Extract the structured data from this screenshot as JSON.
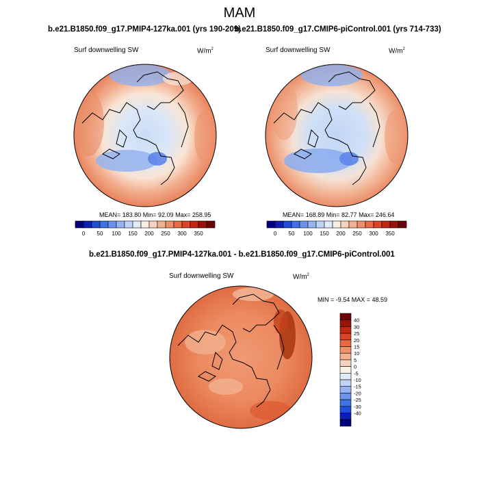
{
  "title": "MAM",
  "panels": [
    {
      "title": "b.e21.B1850.f09_g17.PMIP4-127ka.001 (yrs 190-209)",
      "variable": "Surf downwelling SW",
      "units": "W/m",
      "units_sup": "2",
      "stats": "MEAN= 183.80  Min= 92.09  Max= 258.95"
    },
    {
      "title": "b.e21.B1850.f09_g17.CMIP6-piControl.001 (yrs 714-733)",
      "variable": "Surf downwelling SW",
      "units": "W/m",
      "units_sup": "2",
      "stats": "MEAN= 168.89  Min= 82.77  Max= 246.64"
    }
  ],
  "diff_panel": {
    "title": "b.e21.B1850.f09_g17.PMIP4-127ka.001 - b.e21.B1850.f09_g17.CMIP6-piControl.001",
    "variable": "Surf downwelling SW",
    "units": "W/m",
    "units_sup": "2",
    "stats": "MIN =  -9.54 MAX =  48.59"
  },
  "colorbar_abs": {
    "colors": [
      "#00007f",
      "#0b1fb3",
      "#1f4fd6",
      "#3f72e6",
      "#6b93ee",
      "#95b3f2",
      "#bed3f6",
      "#e0ebfa",
      "#fbeee2",
      "#f7d3bd",
      "#f3b393",
      "#ee9069",
      "#e76a45",
      "#dc4427",
      "#c22714",
      "#9a1208",
      "#6b0404"
    ],
    "labels": [
      "0",
      "50",
      "100",
      "150",
      "200",
      "250",
      "300",
      "350"
    ]
  },
  "colorbar_diff": {
    "colors": [
      "#6b0404",
      "#9a1208",
      "#c22714",
      "#dc4427",
      "#e76a45",
      "#ee9069",
      "#f3b393",
      "#f7d3bd",
      "#fbeee2",
      "#e0ebfa",
      "#bed3f6",
      "#95b3f2",
      "#6b93ee",
      "#3f72e6",
      "#1f4fd6",
      "#0b1fb3",
      "#00007f"
    ],
    "labels": [
      "40",
      "30",
      "25",
      "20",
      "15",
      "10",
      "5",
      "0",
      "-5",
      "-10",
      "-15",
      "-20",
      "-25",
      "-30",
      "-40"
    ]
  }
}
